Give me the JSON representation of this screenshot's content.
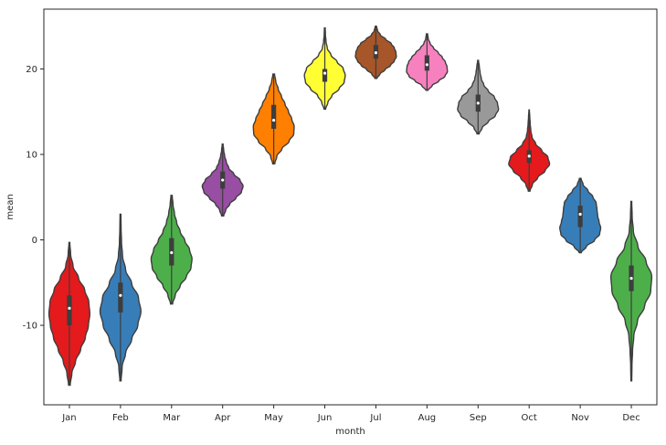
{
  "chart_data": {
    "type": "violin",
    "xlabel": "month",
    "ylabel": "mean",
    "ylim": [
      -19.3,
      27.0
    ],
    "yticks": [
      -10,
      0,
      10,
      20
    ],
    "grid": false,
    "categories": [
      "Jan",
      "Feb",
      "Mar",
      "Apr",
      "May",
      "Jun",
      "Jul",
      "Aug",
      "Sep",
      "Oct",
      "Nov",
      "Dec"
    ],
    "colors": [
      "#e41a1c",
      "#377eb8",
      "#4daf4a",
      "#984ea3",
      "#ff7f00",
      "#ffff33",
      "#a65628",
      "#f781bf",
      "#999999",
      "#e41a1c",
      "#377eb8",
      "#4daf4a"
    ],
    "violins": [
      {
        "min": -17.0,
        "max": -0.3,
        "q1": -10.0,
        "median": -8.0,
        "q3": -6.5,
        "profile": [
          0.04,
          0.12,
          0.3,
          0.55,
          0.78,
          0.93,
          1.0,
          0.95,
          0.75,
          0.45,
          0.18,
          0.06,
          0.02
        ]
      },
      {
        "min": -16.5,
        "max": 3.0,
        "q1": -8.5,
        "median": -6.5,
        "q3": -5.0,
        "profile": [
          0.03,
          0.08,
          0.25,
          0.55,
          0.85,
          1.0,
          0.88,
          0.55,
          0.25,
          0.1,
          0.05,
          0.03,
          0.02
        ]
      },
      {
        "min": -7.5,
        "max": 5.2,
        "q1": -3.0,
        "median": -1.5,
        "q3": 0.2,
        "profile": [
          0.05,
          0.18,
          0.42,
          0.72,
          0.95,
          1.0,
          0.88,
          0.65,
          0.42,
          0.25,
          0.14,
          0.07,
          0.03
        ]
      },
      {
        "min": 2.8,
        "max": 11.2,
        "q1": 6.0,
        "median": 7.0,
        "q3": 8.0,
        "profile": [
          0.05,
          0.15,
          0.35,
          0.65,
          0.92,
          1.0,
          0.85,
          0.55,
          0.3,
          0.18,
          0.1,
          0.05,
          0.02
        ]
      },
      {
        "min": 8.9,
        "max": 19.4,
        "q1": 13.0,
        "median": 14.0,
        "q3": 15.8,
        "profile": [
          0.05,
          0.15,
          0.4,
          0.75,
          0.98,
          1.0,
          0.88,
          0.72,
          0.55,
          0.38,
          0.22,
          0.1,
          0.04
        ]
      },
      {
        "min": 15.3,
        "max": 24.8,
        "q1": 18.5,
        "median": 19.5,
        "q3": 20.0,
        "profile": [
          0.04,
          0.15,
          0.35,
          0.7,
          0.95,
          1.0,
          0.9,
          0.6,
          0.3,
          0.12,
          0.06,
          0.03,
          0.02
        ]
      },
      {
        "min": 18.9,
        "max": 25.0,
        "q1": 21.2,
        "median": 21.9,
        "q3": 22.8,
        "profile": [
          0.05,
          0.2,
          0.45,
          0.72,
          0.9,
          1.0,
          0.98,
          0.9,
          0.75,
          0.48,
          0.22,
          0.08,
          0.03
        ]
      },
      {
        "min": 17.5,
        "max": 24.1,
        "q1": 19.8,
        "median": 20.5,
        "q3": 21.6,
        "profile": [
          0.05,
          0.25,
          0.58,
          0.88,
          1.0,
          0.98,
          0.9,
          0.75,
          0.55,
          0.32,
          0.15,
          0.06,
          0.03
        ]
      },
      {
        "min": 12.4,
        "max": 21.0,
        "q1": 15.0,
        "median": 16.0,
        "q3": 17.0,
        "profile": [
          0.05,
          0.2,
          0.5,
          0.85,
          1.0,
          0.95,
          0.8,
          0.5,
          0.28,
          0.16,
          0.1,
          0.06,
          0.02
        ]
      },
      {
        "min": 5.7,
        "max": 15.2,
        "q1": 9.0,
        "median": 9.8,
        "q3": 10.5,
        "profile": [
          0.04,
          0.16,
          0.42,
          0.78,
          1.0,
          0.92,
          0.62,
          0.32,
          0.14,
          0.08,
          0.05,
          0.03,
          0.01
        ]
      },
      {
        "min": -1.5,
        "max": 7.2,
        "q1": 1.5,
        "median": 3.0,
        "q3": 4.0,
        "profile": [
          0.05,
          0.3,
          0.7,
          0.95,
          1.0,
          0.92,
          0.85,
          0.82,
          0.78,
          0.62,
          0.38,
          0.14,
          0.04
        ]
      },
      {
        "min": -16.5,
        "max": 4.5,
        "q1": -6.0,
        "median": -4.5,
        "q3": -3.0,
        "profile": [
          0.02,
          0.03,
          0.06,
          0.12,
          0.3,
          0.65,
          0.95,
          1.0,
          0.72,
          0.32,
          0.1,
          0.04,
          0.02
        ]
      }
    ]
  }
}
